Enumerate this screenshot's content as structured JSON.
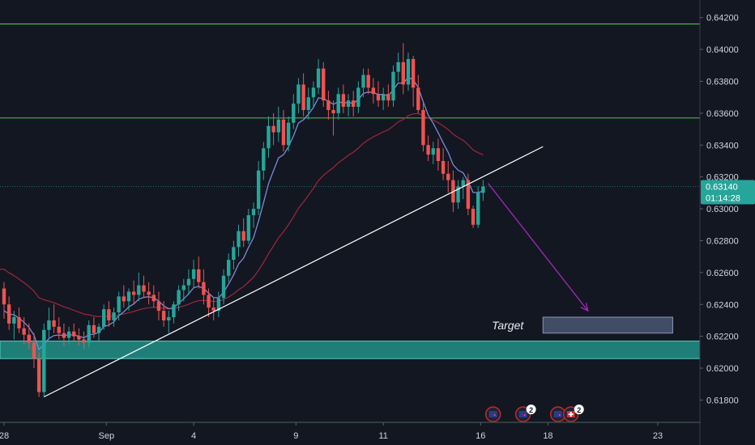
{
  "chart_data": {
    "type": "candlestick",
    "y_axis": {
      "ylim": [
        0.6166,
        0.6429
      ],
      "ticks": [
        "0.64200",
        "0.64000",
        "0.63800",
        "0.63600",
        "0.63400",
        "0.63200",
        "0.63000",
        "0.62800",
        "0.62600",
        "0.62400",
        "0.62200",
        "0.62000",
        "0.61800"
      ],
      "tick_values": [
        0.642,
        0.64,
        0.638,
        0.636,
        0.634,
        0.632,
        0.63,
        0.628,
        0.626,
        0.624,
        0.622,
        0.62,
        0.618
      ]
    },
    "x_axis": {
      "ticks": [
        "28",
        "Sep",
        "4",
        "9",
        "11",
        "16",
        "18",
        "23"
      ],
      "tick_index": [
        0,
        20.5,
        38,
        58.5,
        76,
        95.5,
        109,
        131
      ]
    },
    "current_price": {
      "value": "0.63140",
      "countdown": "01:14:28",
      "price": 0.6314,
      "color": "#26a69a"
    },
    "horizontal_levels": [
      {
        "price": 0.6416,
        "color": "#4caf50"
      },
      {
        "price": 0.6357,
        "color": "#4caf50"
      },
      {
        "price": 0.6166,
        "color": "#4caf50"
      }
    ],
    "support_zone": {
      "from": 0.6206,
      "to": 0.6217,
      "color": "#26a69a"
    },
    "trendline": {
      "start": [
        8,
        0.6182
      ],
      "end": [
        108,
        0.6339
      ],
      "color": "#ffffff"
    },
    "projection_arrow": {
      "start": [
        97,
        0.6316
      ],
      "end": [
        117,
        0.6236
      ],
      "color": "#9c27b0"
    },
    "target": {
      "label": "Target",
      "from_index": 108,
      "to_index": 134,
      "price_low": 0.6222,
      "price_high": 0.6232,
      "color": "#5b6a8c"
    },
    "colors": {
      "up": "#26a69a",
      "down": "#ef5350",
      "ma_fast": "#7b8bd8",
      "ma_slow": "#a0263b"
    },
    "series": [
      {
        "name": "",
        "type": "candles",
        "ohlc": [
          [
            0.625,
            0.6254,
            0.6231,
            0.624
          ],
          [
            0.624,
            0.6245,
            0.6224,
            0.6228
          ],
          [
            0.6228,
            0.6236,
            0.6218,
            0.6232
          ],
          [
            0.6232,
            0.6238,
            0.6222,
            0.6225
          ],
          [
            0.6225,
            0.6232,
            0.6215,
            0.6221
          ],
          [
            0.6221,
            0.6228,
            0.6212,
            0.6216
          ],
          [
            0.6216,
            0.6222,
            0.62,
            0.6206
          ],
          [
            0.6206,
            0.621,
            0.6182,
            0.6185
          ],
          [
            0.6185,
            0.6228,
            0.6182,
            0.6224
          ],
          [
            0.6224,
            0.6238,
            0.6218,
            0.623
          ],
          [
            0.623,
            0.624,
            0.6222,
            0.6226
          ],
          [
            0.6226,
            0.6232,
            0.6218,
            0.6222
          ],
          [
            0.6222,
            0.6228,
            0.6214,
            0.6219
          ],
          [
            0.6219,
            0.6226,
            0.6215,
            0.6223
          ],
          [
            0.6223,
            0.6228,
            0.6217,
            0.622
          ],
          [
            0.622,
            0.6225,
            0.6214,
            0.6218
          ],
          [
            0.6218,
            0.6223,
            0.6212,
            0.6216
          ],
          [
            0.6216,
            0.623,
            0.6213,
            0.6227
          ],
          [
            0.6227,
            0.6232,
            0.6219,
            0.6222
          ],
          [
            0.6222,
            0.6228,
            0.6216,
            0.6226
          ],
          [
            0.6226,
            0.624,
            0.6224,
            0.6237
          ],
          [
            0.6237,
            0.6242,
            0.6226,
            0.623
          ],
          [
            0.623,
            0.6238,
            0.6226,
            0.6235
          ],
          [
            0.6235,
            0.6248,
            0.623,
            0.6245
          ],
          [
            0.6245,
            0.6252,
            0.6238,
            0.6242
          ],
          [
            0.6242,
            0.625,
            0.6236,
            0.6248
          ],
          [
            0.6248,
            0.6255,
            0.624,
            0.6246
          ],
          [
            0.6246,
            0.626,
            0.6242,
            0.6252
          ],
          [
            0.6252,
            0.6258,
            0.6244,
            0.6248
          ],
          [
            0.6248,
            0.6254,
            0.624,
            0.6246
          ],
          [
            0.6246,
            0.6252,
            0.6238,
            0.6242
          ],
          [
            0.6242,
            0.6248,
            0.623,
            0.6236
          ],
          [
            0.6236,
            0.6242,
            0.6226,
            0.623
          ],
          [
            0.623,
            0.6236,
            0.6222,
            0.6232
          ],
          [
            0.6232,
            0.6242,
            0.6228,
            0.624
          ],
          [
            0.624,
            0.6252,
            0.6236,
            0.6249
          ],
          [
            0.6249,
            0.6256,
            0.6242,
            0.6252
          ],
          [
            0.6252,
            0.6262,
            0.6246,
            0.6256
          ],
          [
            0.6256,
            0.6268,
            0.625,
            0.6262
          ],
          [
            0.6262,
            0.627,
            0.625,
            0.6254
          ],
          [
            0.6254,
            0.6262,
            0.624,
            0.6246
          ],
          [
            0.6246,
            0.625,
            0.6232,
            0.6238
          ],
          [
            0.6238,
            0.6244,
            0.623,
            0.6236
          ],
          [
            0.6236,
            0.6248,
            0.6232,
            0.6244
          ],
          [
            0.6244,
            0.6262,
            0.624,
            0.6258
          ],
          [
            0.6258,
            0.6272,
            0.6254,
            0.6268
          ],
          [
            0.6268,
            0.628,
            0.6262,
            0.6276
          ],
          [
            0.6276,
            0.629,
            0.627,
            0.6286
          ],
          [
            0.6286,
            0.6294,
            0.6276,
            0.628
          ],
          [
            0.628,
            0.63,
            0.6278,
            0.6296
          ],
          [
            0.6296,
            0.6304,
            0.6288,
            0.63
          ],
          [
            0.63,
            0.633,
            0.6296,
            0.6324
          ],
          [
            0.6324,
            0.6342,
            0.6318,
            0.6338
          ],
          [
            0.6338,
            0.6358,
            0.6332,
            0.6352
          ],
          [
            0.6352,
            0.636,
            0.634,
            0.6348
          ],
          [
            0.6348,
            0.6364,
            0.6342,
            0.6356
          ],
          [
            0.6356,
            0.6362,
            0.6336,
            0.634
          ],
          [
            0.634,
            0.6358,
            0.6336,
            0.6354
          ],
          [
            0.6354,
            0.6372,
            0.635,
            0.6366
          ],
          [
            0.6366,
            0.6382,
            0.636,
            0.6378
          ],
          [
            0.6378,
            0.6385,
            0.6358,
            0.6362
          ],
          [
            0.6362,
            0.6376,
            0.6356,
            0.637
          ],
          [
            0.637,
            0.638,
            0.6364,
            0.6376
          ],
          [
            0.6376,
            0.6394,
            0.6372,
            0.6388
          ],
          [
            0.6388,
            0.6392,
            0.6364,
            0.6368
          ],
          [
            0.6368,
            0.6374,
            0.6356,
            0.6362
          ],
          [
            0.6362,
            0.6368,
            0.6346,
            0.636
          ],
          [
            0.636,
            0.6376,
            0.6356,
            0.6372
          ],
          [
            0.6372,
            0.6378,
            0.636,
            0.6364
          ],
          [
            0.6364,
            0.6372,
            0.6358,
            0.6368
          ],
          [
            0.6368,
            0.6374,
            0.6358,
            0.6364
          ],
          [
            0.6364,
            0.638,
            0.636,
            0.6376
          ],
          [
            0.6376,
            0.6388,
            0.637,
            0.6384
          ],
          [
            0.6384,
            0.6388,
            0.6372,
            0.6376
          ],
          [
            0.6376,
            0.6382,
            0.6366,
            0.6372
          ],
          [
            0.6372,
            0.638,
            0.6364,
            0.6368
          ],
          [
            0.6368,
            0.6376,
            0.6362,
            0.6372
          ],
          [
            0.6372,
            0.6378,
            0.6364,
            0.6368
          ],
          [
            0.6368,
            0.639,
            0.6364,
            0.6386
          ],
          [
            0.6386,
            0.6398,
            0.638,
            0.6392
          ],
          [
            0.6392,
            0.6404,
            0.6372,
            0.6378
          ],
          [
            0.6378,
            0.6398,
            0.6374,
            0.6394
          ],
          [
            0.6394,
            0.6396,
            0.6364,
            0.6376
          ],
          [
            0.6376,
            0.6384,
            0.636,
            0.6362
          ],
          [
            0.6362,
            0.6368,
            0.6336,
            0.634
          ],
          [
            0.634,
            0.6346,
            0.633,
            0.6334
          ],
          [
            0.6334,
            0.6342,
            0.6328,
            0.6338
          ],
          [
            0.6338,
            0.6344,
            0.6324,
            0.633
          ],
          [
            0.633,
            0.6338,
            0.6318,
            0.6322
          ],
          [
            0.6322,
            0.633,
            0.631,
            0.6318
          ],
          [
            0.6318,
            0.6324,
            0.6298,
            0.6304
          ],
          [
            0.6304,
            0.6318,
            0.63,
            0.6314
          ],
          [
            0.6314,
            0.632,
            0.6306,
            0.6318
          ],
          [
            0.6318,
            0.6322,
            0.6296,
            0.63
          ],
          [
            0.63,
            0.6302,
            0.6288,
            0.629
          ],
          [
            0.629,
            0.6314,
            0.6288,
            0.631
          ],
          [
            0.631,
            0.6318,
            0.6305,
            0.6314
          ]
        ]
      },
      {
        "name": "",
        "type": "line",
        "key": "ma_fast"
      },
      {
        "name": "",
        "type": "line",
        "key": "ma_slow"
      }
    ]
  },
  "events": [
    {
      "index": 98,
      "flags": [
        "nz"
      ],
      "count": ""
    },
    {
      "index": 104,
      "flags": [
        "nz"
      ],
      "count": "2"
    },
    {
      "index": 111,
      "flags": [
        "nz",
        "ch"
      ],
      "count": "2"
    }
  ]
}
